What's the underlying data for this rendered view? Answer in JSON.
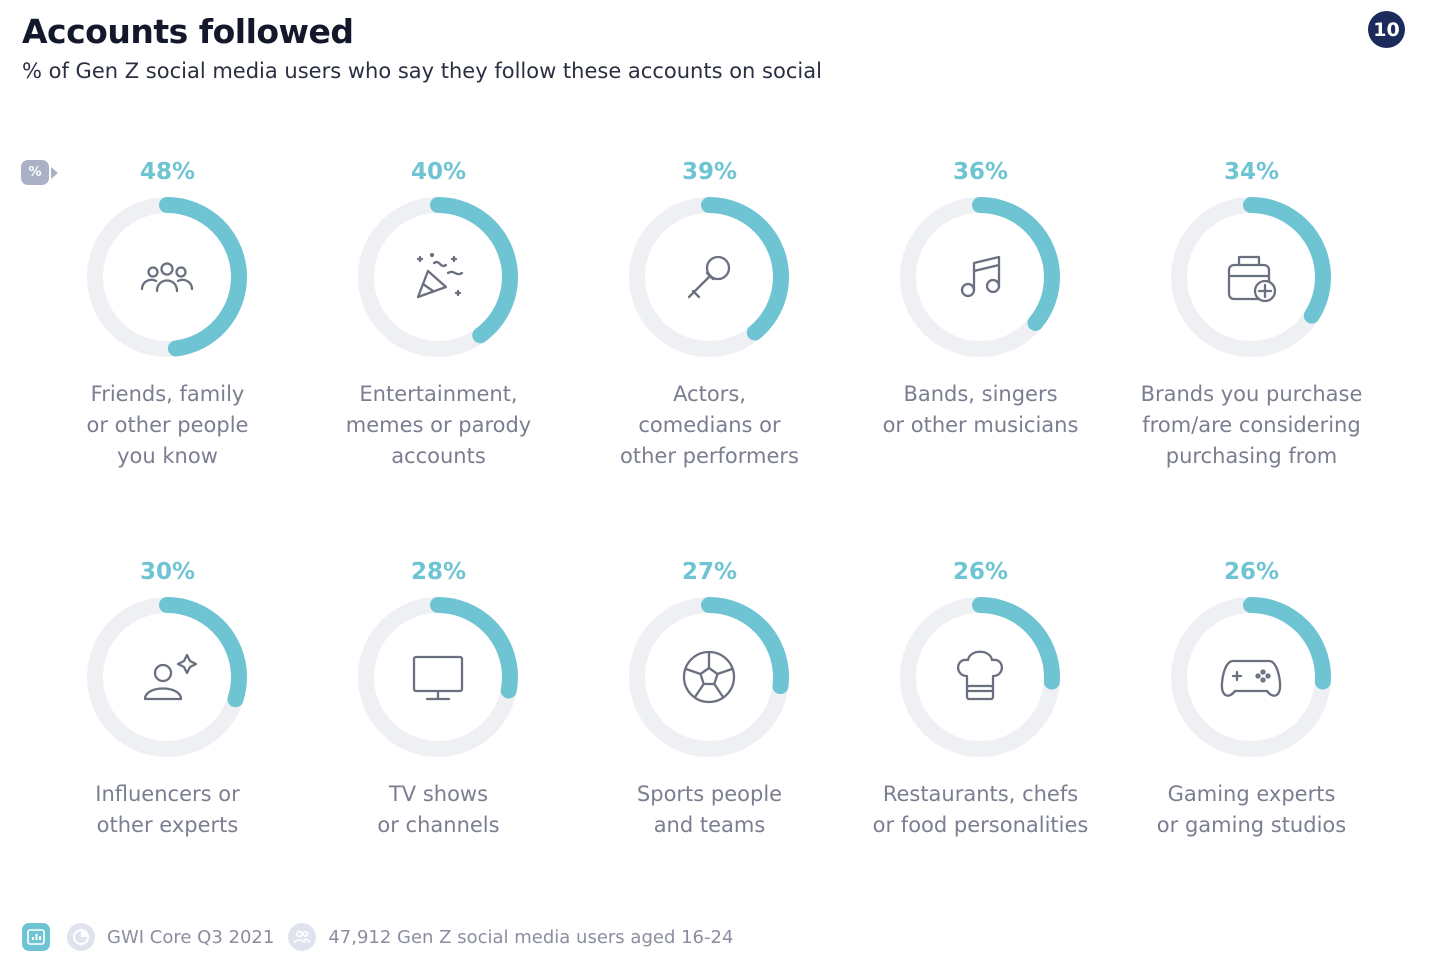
{
  "header": {
    "title": "Accounts followed",
    "subtitle": "% of Gen Z social media users who say they follow these accounts on social",
    "page_number": "10",
    "percent_marker": "%"
  },
  "colors": {
    "accent": "#6ec4d2",
    "track": "#eef0f4",
    "icon": "#6b7080",
    "badge": "#1b2c5c"
  },
  "chart_data": {
    "type": "donut",
    "unit": "%",
    "items": [
      {
        "label": "Friends, family\nor other people\nyou know",
        "value": 48,
        "display": "48%",
        "icon": "people-group-icon"
      },
      {
        "label": "Entertainment,\nmemes or parody\naccounts",
        "value": 40,
        "display": "40%",
        "icon": "party-popper-icon"
      },
      {
        "label": "Actors,\ncomedians or\nother performers",
        "value": 39,
        "display": "39%",
        "icon": "microphone-icon"
      },
      {
        "label": "Bands, singers\nor other musicians",
        "value": 36,
        "display": "36%",
        "icon": "music-note-icon"
      },
      {
        "label": "Brands you purchase\nfrom/are considering\npurchasing from",
        "value": 34,
        "display": "34%",
        "icon": "shopping-bag-plus-icon"
      },
      {
        "label": "Influencers or\nother experts",
        "value": 30,
        "display": "30%",
        "icon": "person-sparkle-icon"
      },
      {
        "label": "TV shows\nor channels",
        "value": 28,
        "display": "28%",
        "icon": "monitor-icon"
      },
      {
        "label": "Sports people\nand teams",
        "value": 27,
        "display": "27%",
        "icon": "soccer-ball-icon"
      },
      {
        "label": "Restaurants, chefs\nor food personalities",
        "value": 26,
        "display": "26%",
        "icon": "chef-hat-icon"
      },
      {
        "label": "Gaming experts\nor gaming studios",
        "value": 26,
        "display": "26%",
        "icon": "gamepad-icon"
      }
    ]
  },
  "footer": {
    "source": "GWI Core Q3 2021",
    "base": "47,912 Gen Z social media users aged 16-24"
  }
}
